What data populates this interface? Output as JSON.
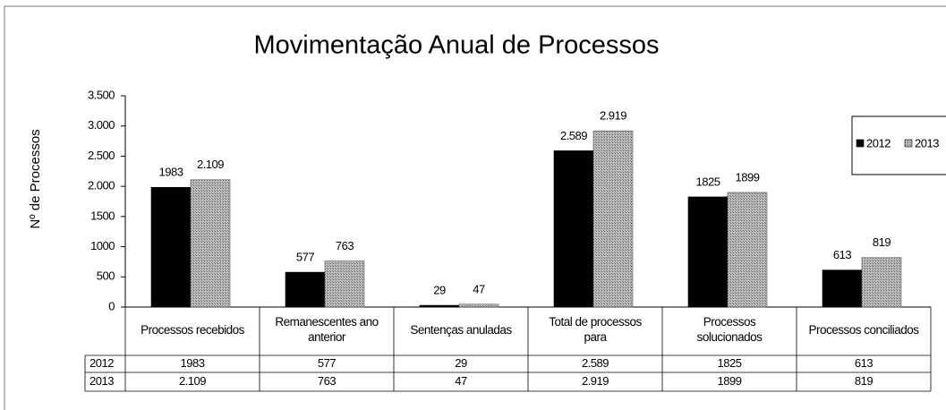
{
  "chart_data": {
    "type": "bar",
    "title": "Movimentação   Anual de Processos",
    "y_axis_label": "Nº de Processos",
    "categories": [
      "Processos recebidos",
      "Remanescentes ano anterior",
      "Sentenças anuladas",
      "Total de processos para",
      "Processos solucionados",
      "Processos conciliados"
    ],
    "series": [
      {
        "name": "2012",
        "color": "#000000",
        "values": [
          1983,
          577,
          29,
          2589,
          1825,
          613
        ],
        "value_labels": [
          "1983",
          "577",
          "29",
          "2.589",
          "1825",
          "613"
        ]
      },
      {
        "name": "2013",
        "color": "#a8a8a8",
        "values": [
          2109,
          763,
          47,
          2919,
          1899,
          819
        ],
        "value_labels": [
          "2.109",
          "763",
          "47",
          "2.919",
          "1899",
          "819"
        ]
      }
    ],
    "ylim": [
      0,
      3500
    ],
    "yticks": [
      0,
      500,
      1000,
      1500,
      {
        "value": 2000,
        "label": "2.000"
      },
      {
        "value": 2500,
        "label": "2.500"
      },
      {
        "value": 3000,
        "label": "3.000"
      },
      {
        "value": 3500,
        "label": "3.500"
      }
    ],
    "legend": "top-right",
    "data_table": true
  }
}
